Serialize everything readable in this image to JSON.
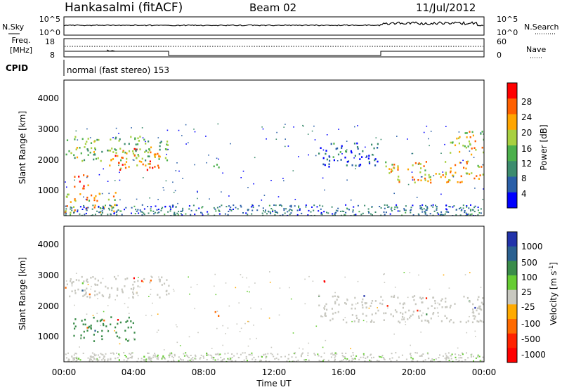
{
  "header": {
    "site": "Hankasalmi (fitACF)",
    "beam": "Beam 02",
    "date": "11/Jul/2012"
  },
  "top_panel": {
    "left_label": "N.Sky",
    "right_label": "N.Search",
    "left_ticks": [
      "10^5",
      "10^0"
    ],
    "right_ticks": [
      "10^5",
      "10^0"
    ]
  },
  "freq_panel": {
    "left_label_1": "Freq.",
    "left_label_2": "[MHz]",
    "left_ticks": [
      "18",
      "8"
    ],
    "right_label": "Nave",
    "right_ticks": [
      "60",
      "0"
    ]
  },
  "cpid": {
    "label": "CPID",
    "text": "normal (fast stereo) 153"
  },
  "x_axis": {
    "ticks": [
      "00:00",
      "04:00",
      "08:00",
      "12:00",
      "16:00",
      "20:00",
      "00:00"
    ],
    "label": "Time UT"
  },
  "y_axis": {
    "label": "Slant Range [km]",
    "ticks": [
      "1000",
      "2000",
      "3000",
      "4000"
    ]
  },
  "power_colorbar": {
    "label": "Power [dB]",
    "ticks": [
      "4",
      "8",
      "12",
      "16",
      "20",
      "24",
      "28"
    ]
  },
  "velocity_colorbar": {
    "label_main": "Velocity [m s",
    "label_exp": "-1",
    "label_end": "]",
    "ticks": [
      "1000",
      "500",
      "100",
      "25",
      "-25",
      "-100",
      "-500",
      "-1000"
    ]
  },
  "colors": {
    "power_scale": [
      "#0000ff",
      "#2a5fa8",
      "#3c8c6e",
      "#4cb04c",
      "#a8d040",
      "#ffa500",
      "#ff6000",
      "#ff0000"
    ],
    "velocity_scale": [
      "#2233aa",
      "#2a6090",
      "#3a8c4a",
      "#66cc33",
      "#c8c8c0",
      "#ffaa00",
      "#ff6a00",
      "#ff2200",
      "#ff0000"
    ]
  },
  "chart_data": {
    "type": "heatmap",
    "title": "Hankasalmi (fitACF)",
    "xlabel": "Time UT",
    "ylabel": "Slant Range [km]",
    "x_range_hours": [
      0,
      24
    ],
    "y_range_km": [
      200,
      4600
    ],
    "panels": [
      {
        "name": "Power [dB]",
        "scale": [
          0,
          30
        ],
        "features": [
          {
            "t": [
              0.0,
              6.0
            ],
            "range": [
              2000,
              2800
            ],
            "value": 14
          },
          {
            "t": [
              0.5,
              1.5
            ],
            "range": [
              1100,
              1600
            ],
            "value": 26
          },
          {
            "t": [
              2.5,
              5.5
            ],
            "range": [
              1700,
              2400
            ],
            "value": 22
          },
          {
            "t": [
              0.0,
              3.0
            ],
            "range": [
              300,
              1000
            ],
            "value": 20
          },
          {
            "t": [
              8.5,
              9.0
            ],
            "range": [
              1700,
              1900
            ],
            "value": 12
          },
          {
            "t": [
              14.5,
              18.0
            ],
            "range": [
              1800,
              2600
            ],
            "value": 6
          },
          {
            "t": [
              18.0,
              24.0
            ],
            "range": [
              1300,
              2000
            ],
            "value": 20
          },
          {
            "t": [
              22.0,
              24.0
            ],
            "range": [
              2200,
              3000
            ],
            "value": 18
          }
        ]
      },
      {
        "name": "Velocity [m s-1]",
        "scale": [
          -1000,
          1000
        ],
        "features": [
          {
            "t": [
              0.0,
              6.0
            ],
            "range": [
              2300,
              3000
            ],
            "value": 0
          },
          {
            "t": [
              0.5,
              4.0
            ],
            "range": [
              900,
              1700
            ],
            "value": 500
          },
          {
            "t": [
              0.0,
              6.0
            ],
            "range": [
              200,
              400
            ],
            "value": 100
          },
          {
            "t": [
              8.5,
              9.0
            ],
            "range": [
              1700,
              1900
            ],
            "value": -400
          },
          {
            "t": [
              14.5,
              24.0
            ],
            "range": [
              1500,
              2400
            ],
            "value": 0
          },
          {
            "t": [
              14.8,
              15.0
            ],
            "range": [
              2700,
              3100
            ],
            "value": -900
          }
        ]
      }
    ]
  }
}
